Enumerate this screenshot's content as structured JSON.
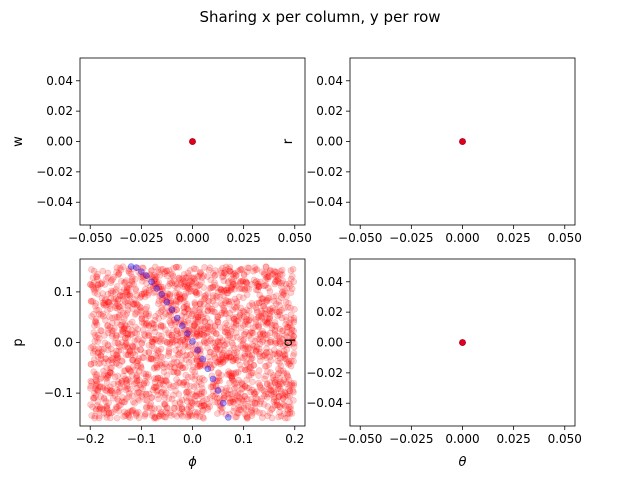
{
  "chart_data": {
    "title": "Sharing x per column, y per row",
    "type": "scatter",
    "grid": false,
    "panels": [
      {
        "position": "top-left",
        "type": "scatter",
        "xlabel": "",
        "ylabel": "w",
        "xlim": [
          -0.055,
          0.055
        ],
        "ylim": [
          -0.055,
          0.055
        ],
        "xticks": [
          -0.05,
          -0.025,
          0.0,
          0.025,
          0.05
        ],
        "xticklabels": [
          "−0.050",
          "−0.025",
          "0.000",
          "0.025",
          "0.050"
        ],
        "yticks": [
          -0.04,
          -0.02,
          0.0,
          0.02,
          0.04
        ],
        "yticklabels": [
          "−0.04",
          "−0.02",
          "0.00",
          "0.02",
          "0.04"
        ],
        "series": [
          {
            "color": "#ff0000",
            "points": [
              [
                0,
                0
              ]
            ]
          },
          {
            "color": "#0000ff",
            "points": [
              [
                0,
                0
              ]
            ]
          }
        ]
      },
      {
        "position": "top-right",
        "type": "scatter",
        "xlabel": "",
        "ylabel": "r",
        "xlim": [
          -0.055,
          0.055
        ],
        "ylim": [
          -0.055,
          0.055
        ],
        "xticks": [
          -0.05,
          -0.025,
          0.0,
          0.025,
          0.05
        ],
        "xticklabels": [
          "−0.050",
          "−0.025",
          "0.000",
          "0.025",
          "0.050"
        ],
        "yticks": [
          -0.04,
          -0.02,
          0.0,
          0.02,
          0.04
        ],
        "yticklabels": [
          "−0.04",
          "−0.02",
          "0.00",
          "0.02",
          "0.04"
        ],
        "series": [
          {
            "color": "#ff0000",
            "points": [
              [
                0,
                0
              ]
            ]
          },
          {
            "color": "#0000ff",
            "points": [
              [
                0,
                0
              ]
            ]
          }
        ]
      },
      {
        "position": "bottom-left",
        "type": "scatter",
        "xlabel": "ϕ",
        "ylabel": "p",
        "xlim": [
          -0.22,
          0.22
        ],
        "ylim": [
          -0.165,
          0.165
        ],
        "xticks": [
          -0.2,
          -0.1,
          0.0,
          0.1,
          0.2
        ],
        "xticklabels": [
          "−0.2",
          "−0.1",
          "0.0",
          "0.1",
          "0.2"
        ],
        "yticks": [
          -0.1,
          0.0,
          0.1
        ],
        "yticklabels": [
          "−0.1",
          "0.0",
          "0.1"
        ],
        "series": [
          {
            "color": "#ff0000",
            "distribution": "uniform",
            "n": 2000,
            "x_range": [
              -0.2,
              0.2
            ],
            "y_range": [
              -0.15,
              0.15
            ]
          },
          {
            "color": "#0000ff",
            "points": [
              [
                -0.12,
                0.15
              ],
              [
                -0.11,
                0.148
              ],
              [
                -0.1,
                0.14
              ],
              [
                -0.09,
                0.132
              ],
              [
                -0.08,
                0.12
              ],
              [
                -0.07,
                0.107
              ],
              [
                -0.06,
                0.095
              ],
              [
                -0.05,
                0.08
              ],
              [
                -0.04,
                0.065
              ],
              [
                -0.03,
                0.048
              ],
              [
                -0.02,
                0.033
              ],
              [
                -0.01,
                0.018
              ],
              [
                0.0,
                0.002
              ],
              [
                0.01,
                -0.015
              ],
              [
                0.02,
                -0.033
              ],
              [
                0.03,
                -0.052
              ],
              [
                0.04,
                -0.072
              ],
              [
                0.05,
                -0.095
              ],
              [
                0.06,
                -0.12
              ],
              [
                0.07,
                -0.148
              ]
            ]
          }
        ]
      },
      {
        "position": "bottom-right",
        "type": "scatter",
        "xlabel": "θ",
        "ylabel": "q",
        "xlim": [
          -0.055,
          0.055
        ],
        "ylim": [
          -0.055,
          0.055
        ],
        "xticks": [
          -0.05,
          -0.025,
          0.0,
          0.025,
          0.05
        ],
        "xticklabels": [
          "−0.050",
          "−0.025",
          "0.000",
          "0.025",
          "0.050"
        ],
        "yticks": [
          -0.04,
          -0.02,
          0.0,
          0.02,
          0.04
        ],
        "yticklabels": [
          "−0.04",
          "−0.02",
          "0.00",
          "0.02",
          "0.04"
        ],
        "series": [
          {
            "color": "#ff0000",
            "points": [
              [
                0,
                0
              ]
            ]
          },
          {
            "color": "#0000ff",
            "points": [
              [
                0,
                0
              ]
            ]
          }
        ]
      }
    ]
  }
}
